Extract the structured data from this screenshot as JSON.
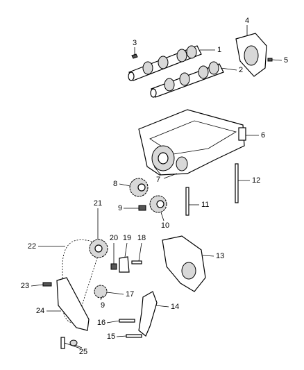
{
  "callouts": [
    {
      "label": "1"
    },
    {
      "label": "2"
    },
    {
      "label": "3"
    },
    {
      "label": "4"
    },
    {
      "label": "5"
    },
    {
      "label": "6"
    },
    {
      "label": "7"
    },
    {
      "label": "8"
    },
    {
      "label": "9"
    },
    {
      "label": "10"
    },
    {
      "label": "11"
    },
    {
      "label": "12"
    },
    {
      "label": "13"
    },
    {
      "label": "14"
    },
    {
      "label": "15"
    },
    {
      "label": "16"
    },
    {
      "label": "17"
    },
    {
      "label": "18"
    },
    {
      "label": "19"
    },
    {
      "label": "20"
    },
    {
      "label": "21"
    },
    {
      "label": "22"
    },
    {
      "label": "23"
    },
    {
      "label": "24"
    },
    {
      "label": "25"
    },
    {
      "label": "9"
    }
  ]
}
